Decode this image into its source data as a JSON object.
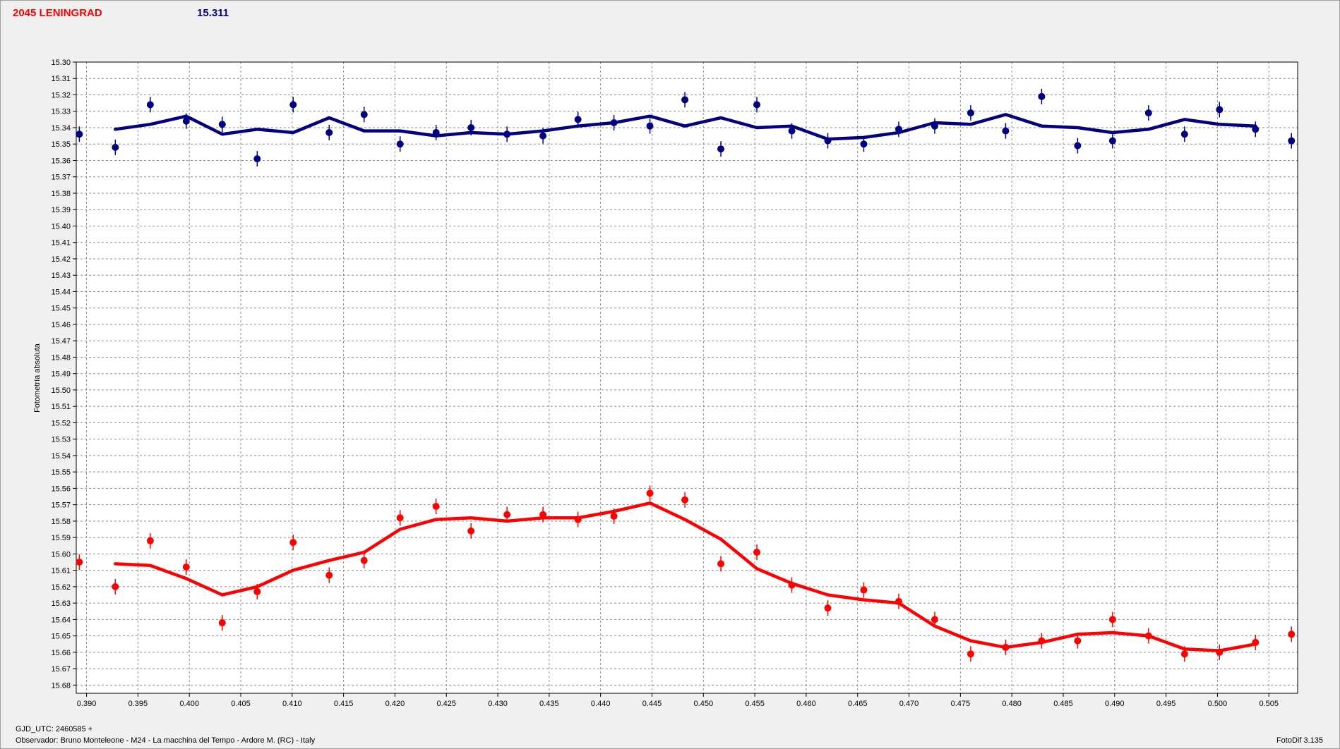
{
  "header": {
    "object_name": "2045 LENINGRAD",
    "reference_mag": "15.311",
    "name_color": "#ff0000",
    "value_color": "#000080"
  },
  "footer": {
    "gjd": "GJD_UTC: 2460585 +",
    "observer": "Observador: Bruno Monteleone - M24 - La macchina del Tempo - Ardore M. (RC) - Italy",
    "software": "FotoDif 3.135"
  },
  "chart_data": {
    "type": "scatter",
    "ylabel": "Fotometría absoluta",
    "y_inverted": true,
    "xlim": [
      0.389,
      0.5078
    ],
    "ylim": [
      15.3,
      15.685
    ],
    "y_ticks": [
      "15.30",
      "15.31",
      "15.32",
      "15.33",
      "15.34",
      "15.35",
      "15.36",
      "15.37",
      "15.38",
      "15.39",
      "15.40",
      "15.41",
      "15.42",
      "15.43",
      "15.44",
      "15.45",
      "15.46",
      "15.47",
      "15.48",
      "15.49",
      "15.50",
      "15.51",
      "15.52",
      "15.53",
      "15.54",
      "15.55",
      "15.56",
      "15.57",
      "15.58",
      "15.59",
      "15.60",
      "15.61",
      "15.62",
      "15.63",
      "15.64",
      "15.65",
      "15.66",
      "15.67",
      "15.68"
    ],
    "x_ticks": [
      "0.390",
      "0.395",
      "0.400",
      "0.405",
      "0.410",
      "0.415",
      "0.420",
      "0.425",
      "0.430",
      "0.435",
      "0.440",
      "0.445",
      "0.450",
      "0.455",
      "0.460",
      "0.465",
      "0.470",
      "0.475",
      "0.480",
      "0.485",
      "0.490",
      "0.495",
      "0.500",
      "0.505"
    ],
    "grid": true,
    "series": [
      {
        "color": "#000080",
        "points": {
          "x": [
            0.3893,
            0.3928,
            0.3962,
            0.3997,
            0.4032,
            0.4066,
            0.4101,
            0.4136,
            0.417,
            0.4205,
            0.424,
            0.4274,
            0.4309,
            0.4344,
            0.4378,
            0.4413,
            0.4448,
            0.4482,
            0.4517,
            0.4552,
            0.4586,
            0.4621,
            0.4656,
            0.469,
            0.4725,
            0.476,
            0.4794,
            0.4829,
            0.4864,
            0.4898,
            0.4933,
            0.4968,
            0.5002,
            0.5037,
            0.5072
          ],
          "y": [
            15.344,
            15.352,
            15.326,
            15.336,
            15.338,
            15.359,
            15.326,
            15.343,
            15.332,
            15.35,
            15.343,
            15.34,
            15.344,
            15.345,
            15.335,
            15.337,
            15.339,
            15.323,
            15.353,
            15.326,
            15.342,
            15.348,
            15.35,
            15.341,
            15.339,
            15.331,
            15.342,
            15.321,
            15.351,
            15.348,
            15.331,
            15.344,
            15.329,
            15.341,
            15.348
          ]
        },
        "fit": {
          "x": [
            0.3928,
            0.3962,
            0.3997,
            0.4032,
            0.4066,
            0.4101,
            0.4136,
            0.417,
            0.4205,
            0.424,
            0.4274,
            0.4309,
            0.4344,
            0.4378,
            0.4413,
            0.4448,
            0.4482,
            0.4517,
            0.4552,
            0.4586,
            0.4621,
            0.4656,
            0.469,
            0.4725,
            0.476,
            0.4794,
            0.4829,
            0.4864,
            0.4898,
            0.4933,
            0.4968,
            0.5002,
            0.5037
          ],
          "y": [
            15.341,
            15.338,
            15.333,
            15.344,
            15.341,
            15.343,
            15.334,
            15.342,
            15.342,
            15.345,
            15.343,
            15.344,
            15.342,
            15.339,
            15.337,
            15.333,
            15.339,
            15.334,
            15.34,
            15.339,
            15.347,
            15.346,
            15.343,
            15.337,
            15.338,
            15.332,
            15.339,
            15.34,
            15.343,
            15.341,
            15.335,
            15.338,
            15.339
          ]
        }
      },
      {
        "color": "#ff0000",
        "points": {
          "x": [
            0.3893,
            0.3928,
            0.3962,
            0.3997,
            0.4032,
            0.4066,
            0.4101,
            0.4136,
            0.417,
            0.4205,
            0.424,
            0.4274,
            0.4309,
            0.4344,
            0.4378,
            0.4413,
            0.4448,
            0.4482,
            0.4517,
            0.4552,
            0.4586,
            0.4621,
            0.4656,
            0.469,
            0.4725,
            0.476,
            0.4794,
            0.4829,
            0.4864,
            0.4898,
            0.4933,
            0.4968,
            0.5002,
            0.5037,
            0.5072
          ],
          "y": [
            15.605,
            15.62,
            15.592,
            15.608,
            15.642,
            15.623,
            15.593,
            15.613,
            15.604,
            15.578,
            15.571,
            15.586,
            15.576,
            15.576,
            15.579,
            15.577,
            15.563,
            15.567,
            15.606,
            15.599,
            15.619,
            15.633,
            15.622,
            15.629,
            15.64,
            15.661,
            15.657,
            15.653,
            15.653,
            15.64,
            15.65,
            15.661,
            15.66,
            15.654,
            15.649
          ]
        },
        "fit": {
          "x": [
            0.3928,
            0.3962,
            0.3997,
            0.4032,
            0.4066,
            0.4101,
            0.4136,
            0.417,
            0.4205,
            0.424,
            0.4274,
            0.4309,
            0.4344,
            0.4378,
            0.4413,
            0.4448,
            0.4482,
            0.4517,
            0.4552,
            0.4586,
            0.4621,
            0.4656,
            0.469,
            0.4725,
            0.476,
            0.4794,
            0.4829,
            0.4864,
            0.4898,
            0.4933,
            0.4968,
            0.5002,
            0.5037
          ],
          "y": [
            15.606,
            15.607,
            15.615,
            15.625,
            15.62,
            15.61,
            15.604,
            15.599,
            15.585,
            15.579,
            15.578,
            15.58,
            15.578,
            15.578,
            15.574,
            15.569,
            15.579,
            15.591,
            15.609,
            15.618,
            15.625,
            15.628,
            15.63,
            15.644,
            15.653,
            15.657,
            15.654,
            15.649,
            15.648,
            15.65,
            15.658,
            15.659,
            15.655
          ]
        }
      }
    ]
  }
}
